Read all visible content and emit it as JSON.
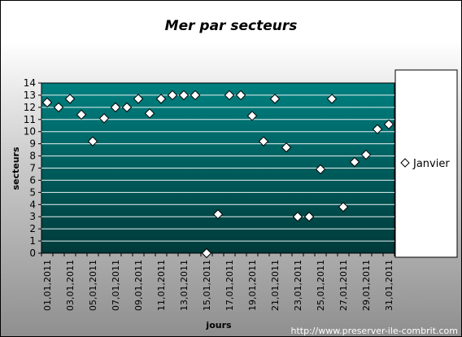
{
  "chart_data": {
    "type": "scatter",
    "title": "Mer par secteurs",
    "xlabel": "jours",
    "ylabel": "secteurs",
    "ylim": [
      0,
      14
    ],
    "yticks": [
      0,
      1,
      2,
      3,
      4,
      5,
      6,
      7,
      8,
      9,
      10,
      11,
      12,
      13,
      14
    ],
    "grid": true,
    "legend_position": "right",
    "x_tick_labels": [
      "01,01,2011",
      "03,01,2011",
      "05,01,2011",
      "07,01,2011",
      "09,01,2011",
      "11,01,2011",
      "13,01,2011",
      "15,01,2011",
      "17,01,2011",
      "19,01,2011",
      "21,01,2011",
      "23,01,2011",
      "25,01,2011",
      "27,01,2011",
      "29,01,2011",
      "31,01,2011"
    ],
    "series": [
      {
        "name": "Janvier",
        "x": [
          "01,01,2011",
          "02,01,2011",
          "03,01,2011",
          "04,01,2011",
          "05,01,2011",
          "06,01,2011",
          "07,01,2011",
          "08,01,2011",
          "09,01,2011",
          "10,01,2011",
          "11,01,2011",
          "12,01,2011",
          "13,01,2011",
          "14,01,2011",
          "15,01,2011",
          "16,01,2011",
          "17,01,2011",
          "18,01,2011",
          "19,01,2011",
          "20,01,2011",
          "21,01,2011",
          "22,01,2011",
          "23,01,2011",
          "24,01,2011",
          "25,01,2011",
          "26,01,2011",
          "27,01,2011",
          "28,01,2011",
          "29,01,2011",
          "30,01,2011",
          "31,01,2011"
        ],
        "values": [
          12.4,
          12.0,
          12.7,
          11.4,
          9.2,
          11.1,
          12.0,
          12.0,
          12.7,
          11.5,
          12.7,
          13.0,
          13.0,
          13.0,
          0.0,
          3.2,
          13.0,
          13.0,
          11.3,
          9.2,
          12.7,
          8.7,
          3.0,
          3.0,
          6.9,
          12.7,
          3.8,
          7.5,
          8.1,
          10.2,
          10.6
        ]
      }
    ]
  },
  "footer": {
    "watermark": "http://www.preserver-ile-combrit.com"
  },
  "colors": {
    "plot_top": "#008080",
    "plot_bottom": "#003a3a",
    "marker_fill": "#ffffff",
    "gridline": "#e6f2f2"
  }
}
